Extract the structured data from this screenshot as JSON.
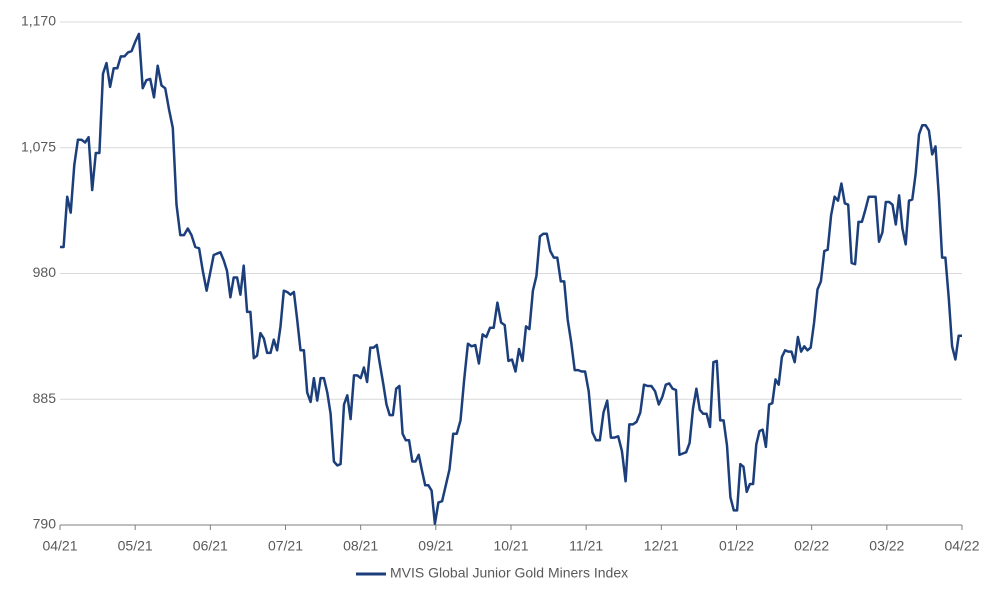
{
  "chart_data": {
    "type": "line",
    "series": [
      {
        "name": "MVIS Global Junior Gold Miners Index",
        "color": "#1c3f7c",
        "values": [
          1000,
          1000,
          1038,
          1026,
          1062,
          1081,
          1081,
          1079,
          1083,
          1043,
          1071,
          1071,
          1131,
          1139,
          1121,
          1135,
          1135,
          1144,
          1144,
          1147,
          1148,
          1155,
          1161,
          1120,
          1126,
          1127,
          1113,
          1137,
          1122,
          1120,
          1104,
          1090,
          1032,
          1009,
          1009,
          1014,
          1009,
          1000,
          999,
          982,
          967,
          981,
          994,
          995,
          996,
          990,
          982,
          962,
          977,
          977,
          964,
          986,
          951,
          951,
          916,
          918,
          935,
          931,
          920,
          920,
          930,
          922,
          940,
          967,
          966,
          964,
          966,
          945,
          922,
          922,
          890,
          883,
          901,
          884,
          901,
          901,
          890,
          874,
          838,
          835,
          836,
          881,
          888,
          870,
          903,
          903,
          901,
          909,
          898,
          924,
          924,
          926,
          911,
          897,
          881,
          873,
          873,
          893,
          895,
          859,
          854,
          854,
          838,
          838,
          843,
          831,
          820,
          820,
          816,
          791,
          807,
          808,
          820,
          832,
          859,
          859,
          869,
          900,
          927,
          925,
          926,
          912,
          934,
          932,
          939,
          939,
          958,
          943,
          941,
          914,
          915,
          906,
          923,
          914,
          940,
          938,
          967,
          978,
          1008,
          1010,
          1010,
          997,
          992,
          992,
          974,
          974,
          945,
          928,
          907,
          907,
          906,
          906,
          891,
          860,
          854,
          854,
          875,
          884,
          856,
          856,
          857,
          846,
          823,
          866,
          866,
          868,
          875,
          896,
          895,
          895,
          891,
          881,
          887,
          896,
          897,
          893,
          892,
          843,
          844,
          845,
          852,
          878,
          893,
          877,
          874,
          874,
          864,
          913,
          914,
          869,
          869,
          850,
          811,
          801,
          801,
          836,
          834,
          815,
          821,
          821,
          851,
          861,
          862,
          849,
          881,
          882,
          900,
          896,
          917,
          922,
          921,
          921,
          913,
          932,
          921,
          925,
          922,
          924,
          943,
          968,
          974,
          997,
          998,
          1024,
          1038,
          1035,
          1048,
          1033,
          1032,
          988,
          987,
          1019,
          1019,
          1028,
          1038,
          1038,
          1038,
          1004,
          1011,
          1034,
          1034,
          1032,
          1017,
          1039,
          1014,
          1002,
          1035,
          1036,
          1055,
          1085,
          1092,
          1092,
          1088,
          1070,
          1076,
          1039,
          992,
          992,
          961,
          925,
          915,
          933,
          933
        ]
      }
    ],
    "xlim": [
      0,
      262
    ],
    "xticks": [
      {
        "value": 0,
        "label": "04/21"
      },
      {
        "value": 21,
        "label": "05/21"
      },
      {
        "value": 41,
        "label": "06/21"
      },
      {
        "value": 63.5,
        "label": "07/21"
      },
      {
        "value": 86,
        "label": "08/21"
      },
      {
        "value": 109.3,
        "label": "09/21"
      },
      {
        "value": 129.7,
        "label": "10/21"
      },
      {
        "value": 151.3,
        "label": "11/21"
      },
      {
        "value": 171.7,
        "label": "12/21"
      },
      {
        "value": 193.8,
        "label": "01/22"
      },
      {
        "value": 217.3,
        "label": "02/22"
      },
      {
        "value": 239.3,
        "label": "03/22"
      },
      {
        "value": 262,
        "label": "04/22"
      }
    ],
    "ylim": [
      790,
      1170
    ],
    "yticks": [
      790,
      885,
      980,
      {
        "value": 1075,
        "label": "1,075"
      },
      {
        "value": 1170,
        "label": "1,170"
      }
    ],
    "grid": true,
    "legend": "bottom"
  }
}
